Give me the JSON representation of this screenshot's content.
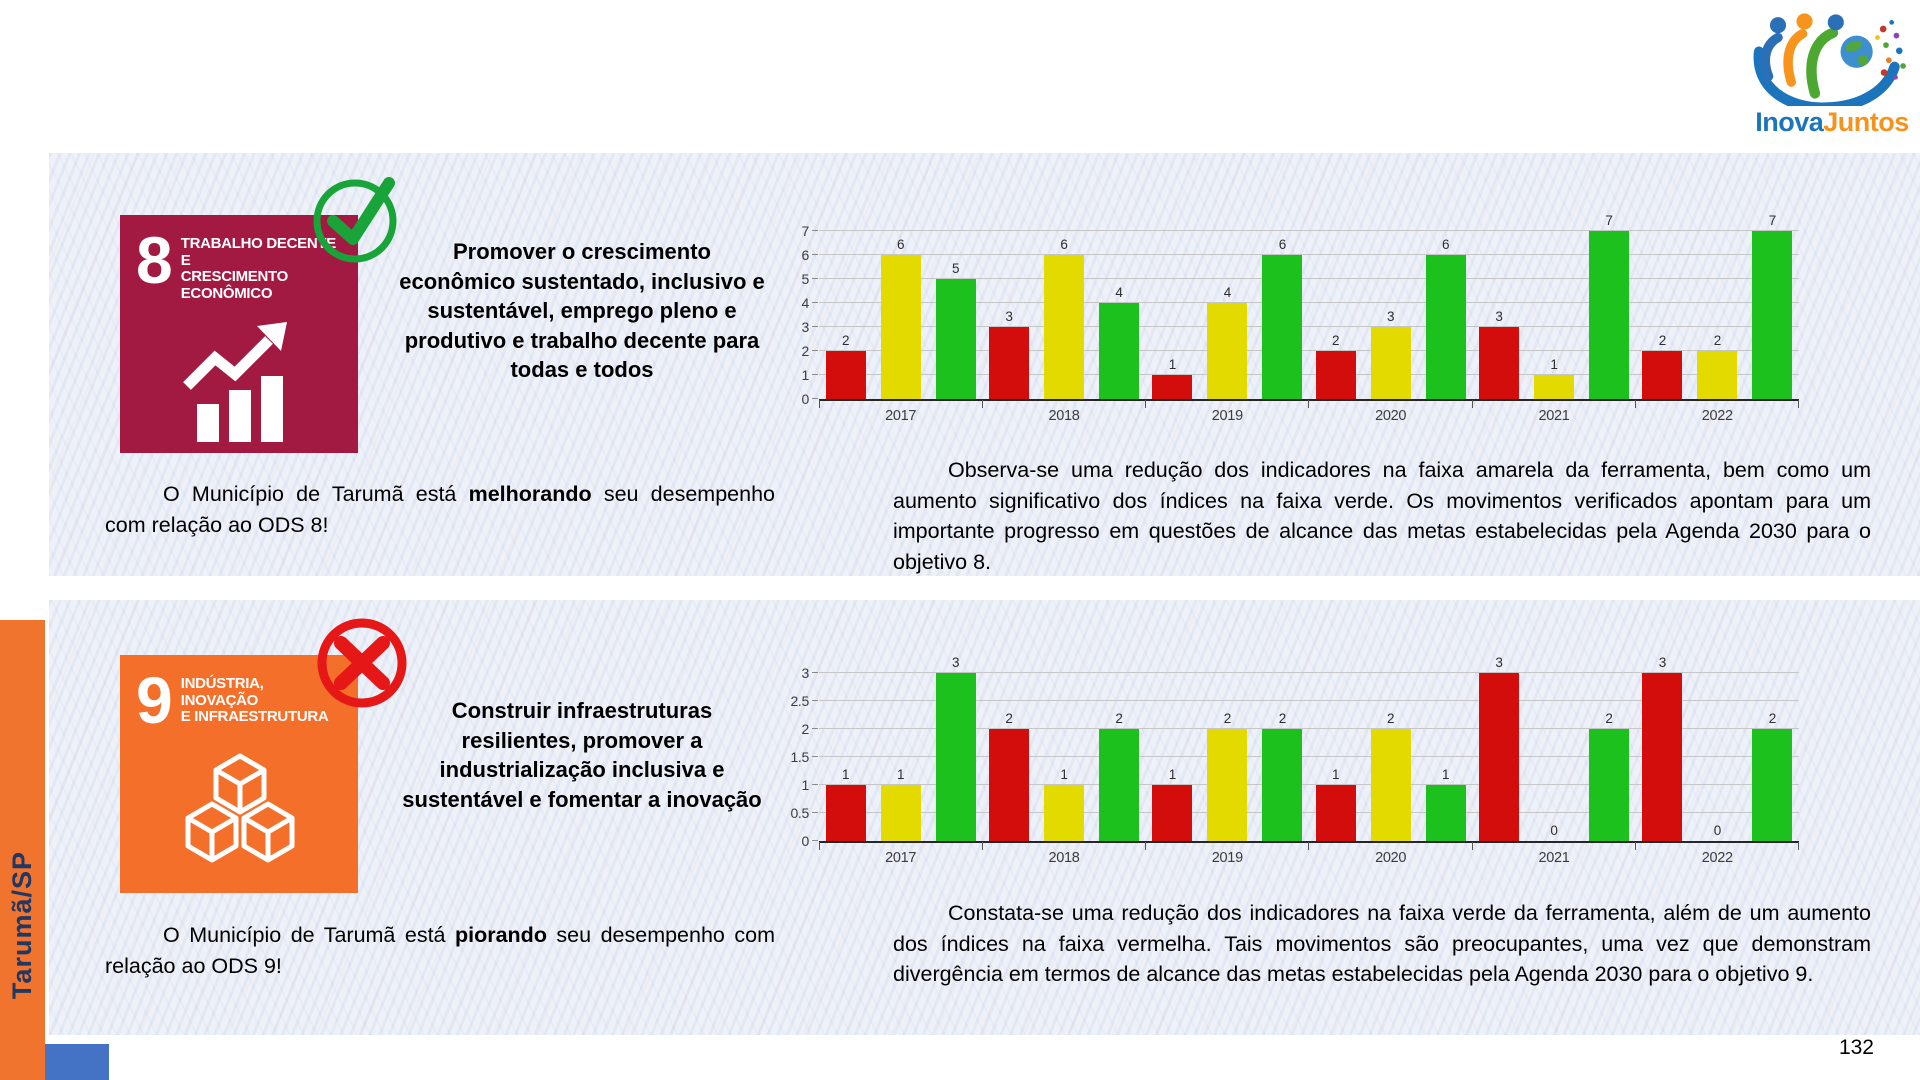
{
  "logo": {
    "text_blue": "Inova",
    "text_orange": "Juntos"
  },
  "sidebar": {
    "label": "Tarumã/SP"
  },
  "page_number": "132",
  "sections": [
    {
      "ods": "8",
      "icon": {
        "number": "8",
        "title_lines": [
          "TRABALHO DECENTE E",
          "CRESCIMENTO",
          "ECONÔMICO"
        ],
        "color": "#A21942",
        "glyph": "growth-chart-icon"
      },
      "mark": "check",
      "goal_text": "Promover o crescimento econômico sustentado, inclusivo e sustentável, emprego pleno e produtivo e trabalho decente para todas e todos",
      "status_pre": "O Município de Tarumã está ",
      "status_em": "melhorando",
      "status_post": " seu desempenho com relação ao ODS 8!",
      "analysis": "Observa-se uma redução dos indicadores na faixa amarela da ferramenta, bem como um aumento significativo dos índices na faixa verde. Os movimentos verificados apontam para um importante progresso em questões de alcance das metas estabelecidas pela Agenda 2030 para o objetivo 8."
    },
    {
      "ods": "9",
      "icon": {
        "number": "9",
        "title_lines": [
          "INDÚSTRIA, INOVAÇÃO",
          "E INFRAESTRUTURA"
        ],
        "color": "#F4702A",
        "glyph": "cubes-icon"
      },
      "mark": "cross",
      "goal_text": "Construir infraestruturas resilientes, promover a industrialização inclusiva e sustentável e fomentar a inovação",
      "status_pre": "O Município de Tarumã está ",
      "status_em": "piorando",
      "status_post": " seu desempenho com relação ao ODS 9!",
      "analysis": "Constata-se uma redução dos indicadores na faixa verde da ferramenta, além de um aumento dos índices na faixa vermelha. Tais movimentos são preocupantes, uma vez que demonstram divergência em termos de alcance das metas estabelecidas pela Agenda 2030 para o objetivo 9."
    }
  ],
  "chart_data": [
    {
      "type": "bar",
      "title": "",
      "categories": [
        "2017",
        "2018",
        "2019",
        "2020",
        "2021",
        "2022"
      ],
      "series": [
        {
          "name": "faixa vermelha",
          "color": "#D30C0C",
          "values": [
            2,
            3,
            1,
            2,
            3,
            2
          ]
        },
        {
          "name": "faixa amarela",
          "color": "#E3DB00",
          "values": [
            6,
            6,
            4,
            3,
            1,
            2
          ]
        },
        {
          "name": "faixa verde",
          "color": "#1DC11D",
          "values": [
            5,
            4,
            6,
            6,
            7,
            7
          ]
        }
      ],
      "xlabel": "",
      "ylabel": "",
      "ylim": [
        0,
        7
      ],
      "ystep": 1,
      "grid": true,
      "legend": "none",
      "value_labels": true
    },
    {
      "type": "bar",
      "title": "",
      "categories": [
        "2017",
        "2018",
        "2019",
        "2020",
        "2021",
        "2022"
      ],
      "series": [
        {
          "name": "faixa vermelha",
          "color": "#D30C0C",
          "values": [
            1,
            2,
            1,
            1,
            3,
            3
          ]
        },
        {
          "name": "faixa amarela",
          "color": "#E3DB00",
          "values": [
            1,
            1,
            2,
            2,
            0,
            0
          ]
        },
        {
          "name": "faixa verde",
          "color": "#1DC11D",
          "values": [
            3,
            2,
            2,
            1,
            2,
            2
          ]
        }
      ],
      "xlabel": "",
      "ylabel": "",
      "ylim": [
        0,
        3
      ],
      "ystep": 0.5,
      "grid": true,
      "legend": "none",
      "value_labels": true
    }
  ]
}
